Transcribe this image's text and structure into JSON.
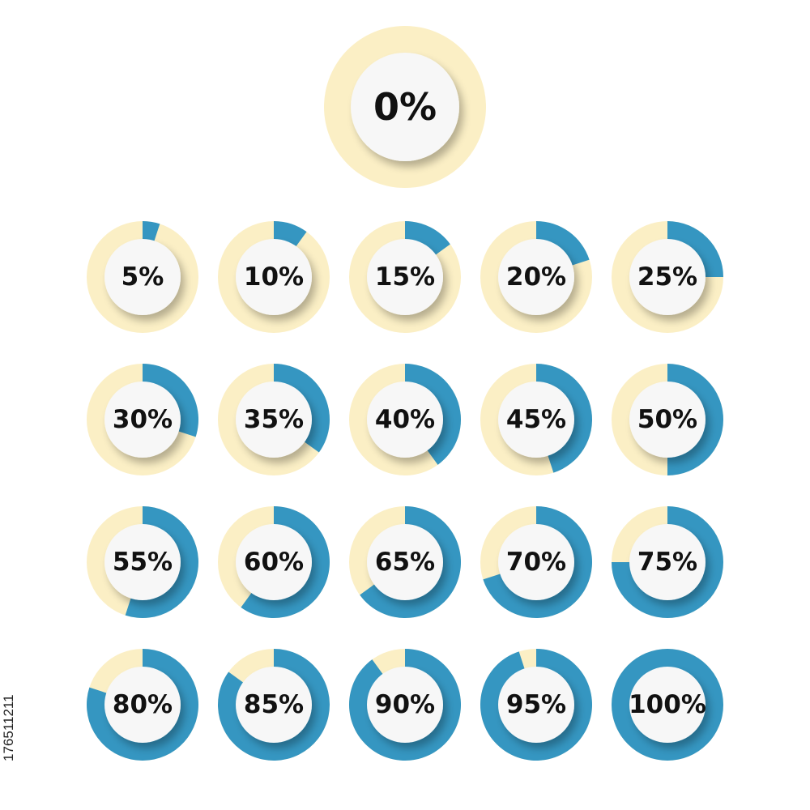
{
  "colors": {
    "track": "#fbefc5",
    "fill": "#3596c1",
    "inner": "#f7f7f7",
    "text": "#111111"
  },
  "chart_data": {
    "type": "pie",
    "title": "",
    "items": [
      {
        "value": 0,
        "label": "0%"
      },
      {
        "value": 5,
        "label": "5%"
      },
      {
        "value": 10,
        "label": "10%"
      },
      {
        "value": 15,
        "label": "15%"
      },
      {
        "value": 20,
        "label": "20%"
      },
      {
        "value": 25,
        "label": "25%"
      },
      {
        "value": 30,
        "label": "30%"
      },
      {
        "value": 35,
        "label": "35%"
      },
      {
        "value": 40,
        "label": "40%"
      },
      {
        "value": 45,
        "label": "45%"
      },
      {
        "value": 50,
        "label": "50%"
      },
      {
        "value": 55,
        "label": "55%"
      },
      {
        "value": 60,
        "label": "60%"
      },
      {
        "value": 65,
        "label": "65%"
      },
      {
        "value": 70,
        "label": "70%"
      },
      {
        "value": 75,
        "label": "75%"
      },
      {
        "value": 80,
        "label": "80%"
      },
      {
        "value": 85,
        "label": "85%"
      },
      {
        "value": 90,
        "label": "90%"
      },
      {
        "value": 95,
        "label": "95%"
      },
      {
        "value": 100,
        "label": "100%"
      }
    ]
  },
  "side_label": "176511211"
}
